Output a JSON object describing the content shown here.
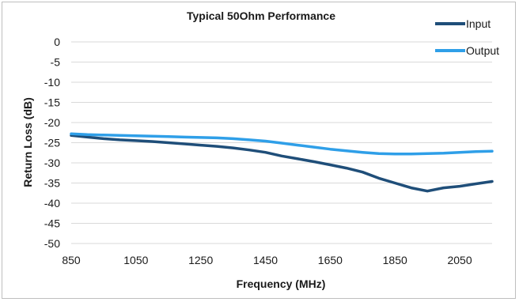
{
  "chart_data": {
    "type": "line",
    "title": "Typical 50Ohm Performance",
    "xlabel": "Frequency (MHz)",
    "ylabel": "Return Loss (dB)",
    "xlim": [
      850,
      2150
    ],
    "ylim": [
      -50,
      0
    ],
    "xticks": [
      850,
      1050,
      1250,
      1450,
      1650,
      1850,
      2050
    ],
    "yticks": [
      0,
      -5,
      -10,
      -15,
      -20,
      -25,
      -30,
      -35,
      -40,
      -45,
      -50
    ],
    "grid": true,
    "legend_position": "top-right",
    "series": [
      {
        "name": "Input",
        "color": "#1f4e79",
        "x": [
          850,
          900,
          950,
          1000,
          1050,
          1100,
          1150,
          1200,
          1250,
          1300,
          1350,
          1400,
          1450,
          1500,
          1550,
          1600,
          1650,
          1700,
          1750,
          1800,
          1850,
          1900,
          1950,
          2000,
          2050,
          2100,
          2150
        ],
        "y": [
          -23.2,
          -23.6,
          -24.0,
          -24.3,
          -24.5,
          -24.7,
          -25.0,
          -25.3,
          -25.6,
          -25.9,
          -26.3,
          -26.8,
          -27.4,
          -28.3,
          -29.0,
          -29.7,
          -30.5,
          -31.3,
          -32.3,
          -33.8,
          -35.0,
          -36.2,
          -37.0,
          -36.2,
          -35.8,
          -35.2,
          -34.6
        ]
      },
      {
        "name": "Output",
        "color": "#2f9fe8",
        "x": [
          850,
          900,
          950,
          1000,
          1050,
          1100,
          1150,
          1200,
          1250,
          1300,
          1350,
          1400,
          1450,
          1500,
          1550,
          1600,
          1650,
          1700,
          1750,
          1800,
          1850,
          1900,
          1950,
          2000,
          2050,
          2100,
          2150
        ],
        "y": [
          -22.8,
          -23.0,
          -23.1,
          -23.2,
          -23.3,
          -23.4,
          -23.5,
          -23.6,
          -23.7,
          -23.8,
          -24.0,
          -24.3,
          -24.6,
          -25.1,
          -25.6,
          -26.1,
          -26.6,
          -27.0,
          -27.4,
          -27.7,
          -27.8,
          -27.8,
          -27.7,
          -27.6,
          -27.4,
          -27.2,
          -27.1
        ]
      }
    ]
  }
}
